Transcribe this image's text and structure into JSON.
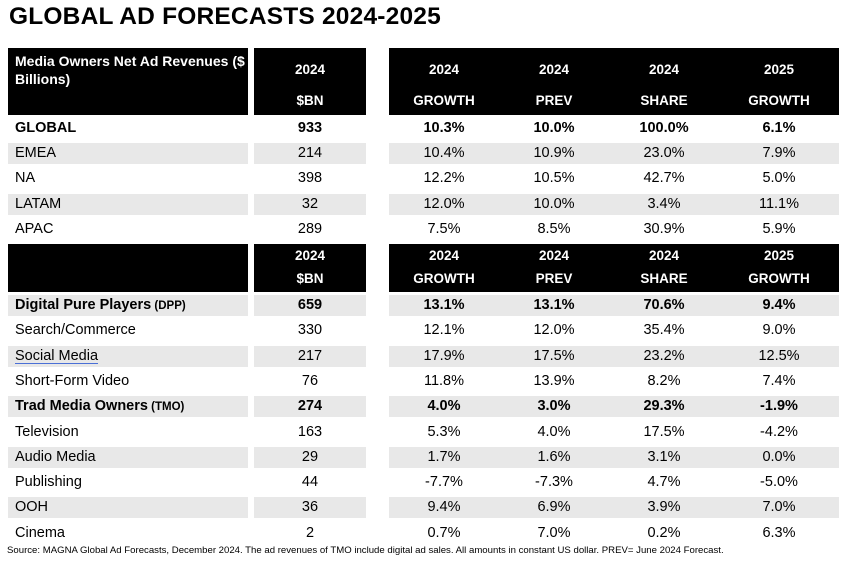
{
  "title": "GLOBAL AD FORECASTS 2024-2025",
  "header_left_label": "Media Owners Net Ad Revenues ($ Billions)",
  "columns": [
    {
      "top": "2024",
      "bottom": "$BN"
    },
    {
      "top": "2024",
      "bottom": "GROWTH"
    },
    {
      "top": "2024",
      "bottom": "PREV"
    },
    {
      "top": "2024",
      "bottom": "SHARE"
    },
    {
      "top": "2025",
      "bottom": "GROWTH"
    }
  ],
  "regions": [
    {
      "name": "GLOBAL",
      "bold": true,
      "values": [
        "933",
        "10.3%",
        "10.0%",
        "100.0%",
        "6.1%"
      ]
    },
    {
      "name": "EMEA",
      "values": [
        "214",
        "10.4%",
        "10.9%",
        "23.0%",
        "7.9%"
      ]
    },
    {
      "name": "NA",
      "values": [
        "398",
        "12.2%",
        "10.5%",
        "42.7%",
        "5.0%"
      ]
    },
    {
      "name": "LATAM",
      "values": [
        "32",
        "12.0%",
        "10.0%",
        "3.4%",
        "11.1%"
      ]
    },
    {
      "name": "APAC",
      "values": [
        "289",
        "7.5%",
        "8.5%",
        "30.9%",
        "5.9%"
      ]
    }
  ],
  "media": [
    {
      "name": "Digital Pure Players",
      "suffix": "(DPP)",
      "bold": true,
      "values": [
        "659",
        "13.1%",
        "13.1%",
        "70.6%",
        "9.4%"
      ]
    },
    {
      "name": "Search/Commerce",
      "values": [
        "330",
        "12.1%",
        "12.0%",
        "35.4%",
        "9.0%"
      ]
    },
    {
      "name": "Social Media",
      "underline": true,
      "values": [
        "217",
        "17.9%",
        "17.5%",
        "23.2%",
        "12.5%"
      ]
    },
    {
      "name": "Short-Form Video",
      "values": [
        "76",
        "11.8%",
        "13.9%",
        "8.2%",
        "7.4%"
      ]
    },
    {
      "name": "Trad Media Owners",
      "suffix": "(TMO)",
      "bold": true,
      "values": [
        "274",
        "4.0%",
        "3.0%",
        "29.3%",
        "-1.9%"
      ]
    },
    {
      "name": "Television",
      "values": [
        "163",
        "5.3%",
        "4.0%",
        "17.5%",
        "-4.2%"
      ]
    },
    {
      "name": "Audio Media",
      "values": [
        "29",
        "1.7%",
        "1.6%",
        "3.1%",
        "0.0%"
      ]
    },
    {
      "name": "Publishing",
      "values": [
        "44",
        "-7.7%",
        "-7.3%",
        "4.7%",
        "-5.0%"
      ]
    },
    {
      "name": "OOH",
      "values": [
        "36",
        "9.4%",
        "6.9%",
        "3.9%",
        "7.0%"
      ]
    },
    {
      "name": "Cinema",
      "values": [
        "2",
        "0.7%",
        "7.0%",
        "0.2%",
        "6.3%"
      ]
    }
  ],
  "source": "Source: MAGNA Global Ad Forecasts, December 2024. The ad revenues of TMO include digital ad sales. All amounts in constant US dollar. PREV= June 2024 Forecast.",
  "colors": {
    "header_bg": "#000000",
    "header_text": "#ffffff",
    "stripe": "#e8e8e8"
  }
}
